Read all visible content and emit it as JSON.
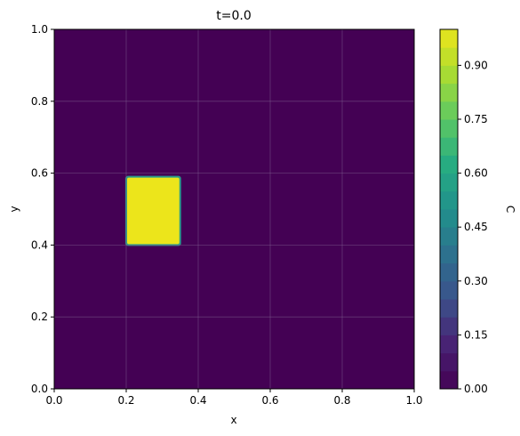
{
  "chart_data": {
    "type": "heatmap",
    "title": "t=0.0",
    "xlabel": "x",
    "ylabel": "y",
    "xlim": [
      0.0,
      1.0
    ],
    "ylim": [
      0.0,
      1.0
    ],
    "x_ticks": [
      "0.0",
      "0.2",
      "0.4",
      "0.6",
      "0.8",
      "1.0"
    ],
    "y_ticks": [
      "0.0",
      "0.2",
      "0.4",
      "0.6",
      "0.8",
      "1.0"
    ],
    "grid": true,
    "colormap": "viridis",
    "background_value": 0.0,
    "regions": [
      {
        "x_range": [
          0.2,
          0.35
        ],
        "y_range": [
          0.4,
          0.59
        ],
        "value": 1.0
      }
    ],
    "colorbar": {
      "label": "C",
      "range": [
        0.0,
        1.0
      ],
      "ticks": [
        "0.00",
        "0.15",
        "0.30",
        "0.45",
        "0.60",
        "0.75",
        "0.90"
      ],
      "levels": 20
    },
    "colors": {
      "low": "#440154",
      "high": "#ece51b",
      "edge": "#2a9a8a",
      "grid": "#7b5b8c"
    }
  }
}
